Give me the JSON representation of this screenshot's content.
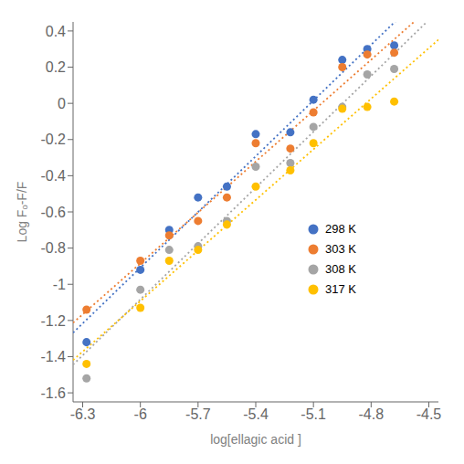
{
  "chart_data": {
    "type": "scatter",
    "x_label": "log[ellagic acid ]",
    "y_label": "Log Fₒ-F/F",
    "xlim": [
      -6.35,
      -4.45
    ],
    "ylim": [
      -1.65,
      0.45
    ],
    "xticks": [
      -6.3,
      -6,
      -5.7,
      -5.4,
      -5.1,
      -4.8,
      -4.5
    ],
    "yticks": [
      -1.6,
      -1.4,
      -1.2,
      -1,
      -0.8,
      -0.6,
      -0.4,
      -0.2,
      0,
      0.2,
      0.4
    ],
    "grid": false,
    "legend": "lower right",
    "marker": "circle",
    "series": [
      {
        "name": "298 K",
        "color": "#4472C4",
        "x": [
          -6.28,
          -6.0,
          -5.85,
          -5.7,
          -5.55,
          -5.4,
          -5.22,
          -5.1,
          -4.95,
          -4.82,
          -4.68
        ],
        "values": [
          -1.32,
          -0.92,
          -0.7,
          -0.52,
          -0.46,
          -0.17,
          -0.16,
          0.02,
          0.24,
          0.3,
          0.32
        ],
        "trend": {
          "x": [
            -6.35,
            -4.45
          ],
          "values": [
            -1.2677,
            0.683
          ],
          "line_style": "dotted"
        }
      },
      {
        "name": "303 K",
        "color": "#ED7D31",
        "x": [
          -6.28,
          -6.0,
          -5.85,
          -5.7,
          -5.55,
          -5.4,
          -5.22,
          -5.1,
          -4.95,
          -4.82,
          -4.68
        ],
        "values": [
          -1.14,
          -0.87,
          -0.73,
          -0.65,
          -0.52,
          -0.22,
          -0.25,
          -0.05,
          0.2,
          0.27,
          0.28
        ],
        "trend": {
          "x": [
            -6.35,
            -4.45
          ],
          "values": [
            -1.213,
            0.5695
          ],
          "line_style": "dotted"
        }
      },
      {
        "name": "308 K",
        "color": "#A5A5A5",
        "x": [
          -6.28,
          -6.0,
          -5.85,
          -5.7,
          -5.55,
          -5.4,
          -5.22,
          -5.1,
          -4.95,
          -4.82,
          -4.68
        ],
        "values": [
          -1.52,
          -1.03,
          -0.81,
          -0.79,
          -0.65,
          -0.35,
          -0.33,
          -0.13,
          -0.02,
          0.16,
          0.19
        ],
        "trend": {
          "x": [
            -6.35,
            -4.45
          ],
          "values": [
            -1.4441,
            0.5122
          ],
          "line_style": "dotted"
        }
      },
      {
        "name": "317 K",
        "color": "#FFC000",
        "x": [
          -6.28,
          -6.0,
          -5.85,
          -5.7,
          -5.55,
          -5.4,
          -5.22,
          -5.1,
          -4.95,
          -4.82,
          -4.68
        ],
        "values": [
          -1.44,
          -1.13,
          -0.87,
          -0.81,
          -0.67,
          -0.46,
          -0.37,
          -0.22,
          -0.03,
          -0.02,
          0.01
        ],
        "trend": {
          "x": [
            -6.35,
            -4.45
          ],
          "values": [
            -1.4188,
            0.3515
          ],
          "line_style": "dotted"
        }
      }
    ]
  }
}
